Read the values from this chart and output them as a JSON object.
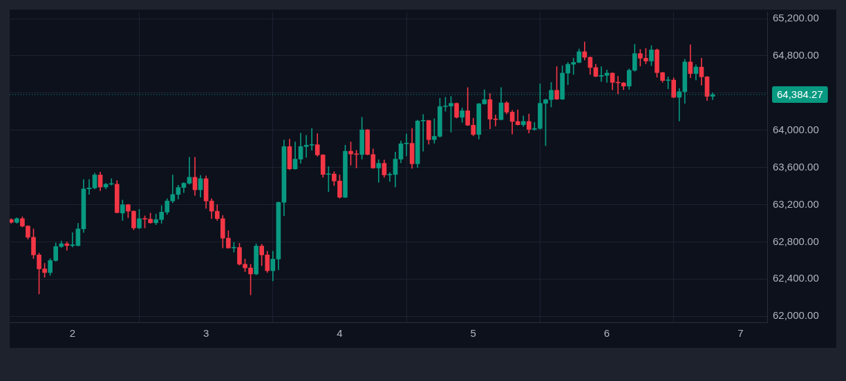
{
  "chart_data": {
    "type": "candlestick",
    "x": [
      1.5417,
      1.5833,
      1.625,
      1.6667,
      1.7083,
      1.75,
      1.7917,
      1.8333,
      1.875,
      1.9167,
      1.9583,
      2,
      2.0417,
      2.0833,
      2.125,
      2.1667,
      2.2083,
      2.25,
      2.2917,
      2.3333,
      2.375,
      2.4167,
      2.4583,
      2.5,
      2.5417,
      2.5833,
      2.625,
      2.6667,
      2.7083,
      2.75,
      2.7917,
      2.8333,
      2.875,
      2.9167,
      2.9583,
      3,
      3.0417,
      3.0833,
      3.125,
      3.1667,
      3.2083,
      3.25,
      3.2917,
      3.3333,
      3.375,
      3.4167,
      3.4583,
      3.5,
      3.5417,
      3.5833,
      3.625,
      3.6667,
      3.7083,
      3.75,
      3.7917,
      3.8333,
      3.875,
      3.9167,
      3.9583,
      4,
      4.0417,
      4.0833,
      4.125,
      4.1667,
      4.2083,
      4.25,
      4.2917,
      4.3333,
      4.375,
      4.4167,
      4.4583,
      4.5,
      4.5417,
      4.5833,
      4.625,
      4.6667,
      4.7083,
      4.75,
      4.7917,
      4.8333,
      4.875,
      4.9167,
      4.9583,
      5,
      5.0417,
      5.0833,
      5.125,
      5.1667,
      5.2083,
      5.25,
      5.2917,
      5.3333,
      5.375,
      5.4167,
      5.4583,
      5.5,
      5.5417,
      5.5833,
      5.625,
      5.6667,
      5.7083,
      5.75,
      5.7917,
      5.8333,
      5.875,
      5.9167,
      5.9583,
      6,
      6.0417,
      6.0833,
      6.125,
      6.1667,
      6.2083,
      6.25,
      6.2917,
      6.3333,
      6.375,
      6.4167,
      6.4583,
      6.5,
      6.5417,
      6.5833,
      6.625,
      6.6667,
      6.7083,
      6.75,
      6.7917
    ],
    "ohlc": [
      [
        63040,
        63050,
        63000,
        63010
      ],
      [
        63010,
        63060,
        63000,
        63050
      ],
      [
        63050,
        63070,
        62960,
        62970
      ],
      [
        62970,
        62975,
        62830,
        62850
      ],
      [
        62850,
        62940,
        62620,
        62660
      ],
      [
        62660,
        62680,
        62240,
        62510
      ],
      [
        62510,
        62570,
        62420,
        62470
      ],
      [
        62470,
        62620,
        62440,
        62600
      ],
      [
        62600,
        62790,
        62590,
        62750
      ],
      [
        62750,
        62810,
        62740,
        62780
      ],
      [
        62780,
        62800,
        62710,
        62760
      ],
      [
        62760,
        62900,
        62745,
        62770
      ],
      [
        62760,
        63000,
        62755,
        62940
      ],
      [
        62940,
        63470,
        62900,
        63370
      ],
      [
        63370,
        63470,
        63310,
        63380
      ],
      [
        63380,
        63540,
        63370,
        63520
      ],
      [
        63520,
        63550,
        63350,
        63390
      ],
      [
        63390,
        63430,
        63370,
        63420
      ],
      [
        63420,
        63480,
        63410,
        63425
      ],
      [
        63420,
        63460,
        63110,
        63115
      ],
      [
        63110,
        63250,
        63030,
        63200
      ],
      [
        63200,
        63205,
        63060,
        63130
      ],
      [
        63130,
        63135,
        62930,
        62950
      ],
      [
        62950,
        63150,
        62940,
        63050
      ],
      [
        63050,
        63080,
        62950,
        63045
      ],
      [
        63045,
        63110,
        63000,
        63005
      ],
      [
        63005,
        63100,
        62985,
        63040
      ],
      [
        63040,
        63190,
        63000,
        63120
      ],
      [
        63120,
        63265,
        63095,
        63240
      ],
      [
        63240,
        63520,
        63220,
        63310
      ],
      [
        63310,
        63410,
        63260,
        63385
      ],
      [
        63385,
        63440,
        63330,
        63430
      ],
      [
        63430,
        63710,
        63420,
        63495
      ],
      [
        63495,
        63710,
        63300,
        63360
      ],
      [
        63360,
        63515,
        63280,
        63480
      ],
      [
        63480,
        63510,
        63160,
        63240
      ],
      [
        63240,
        63265,
        63050,
        63130
      ],
      [
        63130,
        63200,
        63030,
        63050
      ],
      [
        63050,
        63085,
        62735,
        62840
      ],
      [
        62840,
        62920,
        62730,
        62735
      ],
      [
        62735,
        62795,
        62690,
        62740
      ],
      [
        62740,
        62785,
        62550,
        62560
      ],
      [
        62560,
        62615,
        62480,
        62520
      ],
      [
        62520,
        62560,
        62230,
        62455
      ],
      [
        62455,
        62780,
        62445,
        62755
      ],
      [
        62755,
        62775,
        62545,
        62660
      ],
      [
        62660,
        62700,
        62470,
        62490
      ],
      [
        62490,
        62700,
        62380,
        62615
      ],
      [
        62615,
        63230,
        62500,
        63225
      ],
      [
        63225,
        63895,
        63080,
        63825
      ],
      [
        63825,
        63905,
        63575,
        63585
      ],
      [
        63585,
        63875,
        63580,
        63690
      ],
      [
        63690,
        63970,
        63645,
        63825
      ],
      [
        63825,
        63945,
        63710,
        63840
      ],
      [
        63840,
        64020,
        63785,
        63845
      ],
      [
        63845,
        63965,
        63720,
        63735
      ],
      [
        63735,
        63740,
        63495,
        63525
      ],
      [
        63525,
        63610,
        63340,
        63530
      ],
      [
        63530,
        63555,
        63405,
        63455
      ],
      [
        63455,
        63520,
        63270,
        63280
      ],
      [
        63280,
        63840,
        63275,
        63775
      ],
      [
        63775,
        63875,
        63625,
        63745
      ],
      [
        63745,
        63785,
        63595,
        63740
      ],
      [
        63740,
        64140,
        63690,
        64005
      ],
      [
        64005,
        64010,
        63735,
        63740
      ],
      [
        63740,
        63800,
        63590,
        63595
      ],
      [
        63595,
        63685,
        63440,
        63645
      ],
      [
        63645,
        63680,
        63495,
        63520
      ],
      [
        63520,
        63545,
        63450,
        63525
      ],
      [
        63525,
        63765,
        63390,
        63690
      ],
      [
        63690,
        63885,
        63650,
        63855
      ],
      [
        63855,
        63960,
        63725,
        63860
      ],
      [
        63860,
        64020,
        63590,
        63640
      ],
      [
        63640,
        64110,
        63600,
        64100
      ],
      [
        64100,
        64170,
        63775,
        64105
      ],
      [
        64105,
        64110,
        63850,
        63900
      ],
      [
        63900,
        64125,
        63860,
        63935
      ],
      [
        63935,
        64345,
        63925,
        64255
      ],
      [
        64255,
        64355,
        64205,
        64260
      ],
      [
        64260,
        64365,
        63980,
        64290
      ],
      [
        64290,
        64295,
        64130,
        64140
      ],
      [
        64140,
        64240,
        64085,
        64210
      ],
      [
        64210,
        64460,
        64050,
        64055
      ],
      [
        64055,
        64130,
        63940,
        63955
      ],
      [
        63955,
        64290,
        63905,
        64285
      ],
      [
        64285,
        64435,
        64280,
        64330
      ],
      [
        64330,
        64395,
        64015,
        64120
      ],
      [
        64120,
        64165,
        64045,
        64115
      ],
      [
        64115,
        64460,
        64110,
        64295
      ],
      [
        64295,
        64310,
        64175,
        64195
      ],
      [
        64195,
        64215,
        63960,
        64095
      ],
      [
        64095,
        64220,
        64055,
        64060
      ],
      [
        64060,
        64155,
        64040,
        64095
      ],
      [
        64095,
        64175,
        63970,
        64010
      ],
      [
        64010,
        64085,
        64000,
        64020
      ],
      [
        64020,
        64500,
        64010,
        64290
      ],
      [
        64290,
        64335,
        63835,
        64330
      ],
      [
        64330,
        64515,
        64250,
        64430
      ],
      [
        64430,
        64685,
        64330,
        64335
      ],
      [
        64335,
        64695,
        64330,
        64615
      ],
      [
        64615,
        64730,
        64490,
        64710
      ],
      [
        64710,
        64775,
        64600,
        64730
      ],
      [
        64730,
        64875,
        64725,
        64845
      ],
      [
        64845,
        64950,
        64755,
        64785
      ],
      [
        64785,
        64790,
        64600,
        64675
      ],
      [
        64675,
        64710,
        64575,
        64580
      ],
      [
        64580,
        64685,
        64525,
        64590
      ],
      [
        64590,
        64650,
        64515,
        64615
      ],
      [
        64615,
        64620,
        64435,
        64515
      ],
      [
        64515,
        64580,
        64390,
        64510
      ],
      [
        64510,
        64515,
        64435,
        64475
      ],
      [
        64475,
        64660,
        64440,
        64645
      ],
      [
        64645,
        64925,
        64635,
        64825
      ],
      [
        64825,
        64870,
        64690,
        64775
      ],
      [
        64775,
        64880,
        64715,
        64745
      ],
      [
        64745,
        64910,
        64695,
        64865
      ],
      [
        64865,
        64875,
        64570,
        64620
      ],
      [
        64620,
        64625,
        64515,
        64535
      ],
      [
        64535,
        64575,
        64445,
        64540
      ],
      [
        64540,
        64565,
        64350,
        64355
      ],
      [
        64355,
        64450,
        64100,
        64415
      ],
      [
        64415,
        64765,
        64290,
        64735
      ],
      [
        64735,
        64920,
        64565,
        64610
      ],
      [
        64610,
        64705,
        64540,
        64680
      ],
      [
        64680,
        64775,
        64485,
        64575
      ],
      [
        64575,
        64580,
        64320,
        64365
      ],
      [
        64365,
        64405,
        64330,
        64384.27
      ]
    ],
    "colors": [
      "#f23645",
      "#089981",
      "#f23645",
      "#f23645",
      "#f23645",
      "#f23645",
      "#f23645",
      "#089981",
      "#089981",
      "#089981",
      "#f23645",
      "#089981",
      "#089981",
      "#089981",
      "#089981",
      "#089981",
      "#f23645",
      "#089981",
      "#089981",
      "#f23645",
      "#089981",
      "#f23645",
      "#f23645",
      "#089981",
      "#f23645",
      "#f23645",
      "#089981",
      "#089981",
      "#089981",
      "#089981",
      "#089981",
      "#089981",
      "#089981",
      "#f23645",
      "#089981",
      "#f23645",
      "#f23645",
      "#f23645",
      "#f23645",
      "#f23645",
      "#089981",
      "#f23645",
      "#f23645",
      "#f23645",
      "#089981",
      "#f23645",
      "#f23645",
      "#089981",
      "#089981",
      "#089981",
      "#f23645",
      "#089981",
      "#089981",
      "#089981",
      "#089981",
      "#f23645",
      "#f23645",
      "#089981",
      "#f23645",
      "#f23645",
      "#089981",
      "#f23645",
      "#f23645",
      "#089981",
      "#f23645",
      "#f23645",
      "#089981",
      "#f23645",
      "#089981",
      "#089981",
      "#089981",
      "#089981",
      "#f23645",
      "#089981",
      "#089981",
      "#f23645",
      "#089981",
      "#089981",
      "#089981",
      "#089981",
      "#f23645",
      "#089981",
      "#f23645",
      "#f23645",
      "#089981",
      "#089981",
      "#f23645",
      "#f23645",
      "#089981",
      "#f23645",
      "#f23645",
      "#f23645",
      "#089981",
      "#f23645",
      "#089981",
      "#089981",
      "#089981",
      "#089981",
      "#f23645",
      "#089981",
      "#089981",
      "#089981",
      "#089981",
      "#f23645",
      "#f23645",
      "#f23645",
      "#089981",
      "#089981",
      "#f23645",
      "#f23645",
      "#f23645",
      "#089981",
      "#089981",
      "#f23645",
      "#f23645",
      "#089981",
      "#f23645",
      "#f23645",
      "#089981",
      "#f23645",
      "#089981",
      "#089981",
      "#f23645",
      "#089981",
      "#f23645",
      "#f23645",
      "#089981"
    ],
    "xlim": [
      1.53,
      7.2
    ],
    "xticks": [
      2,
      3,
      4,
      5,
      6,
      7
    ],
    "ylim": [
      61935,
      65275
    ],
    "yticks": [
      {
        "value": 62000,
        "label": "62,000.00"
      },
      {
        "value": 62400,
        "label": "62,400.00"
      },
      {
        "value": 62800,
        "label": "62,800.00"
      },
      {
        "value": 63200,
        "label": "63,200.00"
      },
      {
        "value": 63600,
        "label": "63,600.00"
      },
      {
        "value": 64000,
        "label": "64,000.00"
      },
      {
        "value": 64400,
        "label": null
      },
      {
        "value": 64800,
        "label": "64,800.00"
      },
      {
        "value": 65200,
        "label": "65,200.00"
      }
    ],
    "ref_lines": [
      {
        "axis": "y",
        "value": 64384.27,
        "label": "64,384.27",
        "color": "#089981",
        "line_style": "dotted"
      }
    ],
    "grid": true,
    "legend": false
  }
}
